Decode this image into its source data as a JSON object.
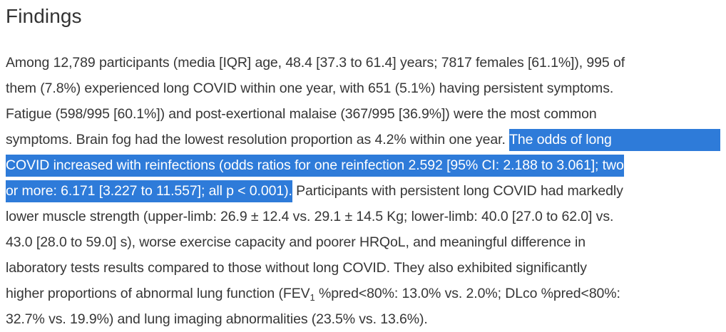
{
  "heading": "Findings",
  "colors": {
    "selection": "#2e7bd9",
    "selection_text": "#ffffff",
    "text": "#363636",
    "heading": "#333333",
    "background": "#ffffff"
  },
  "paragraph_lines": [
    {
      "segments": [
        {
          "t": "Among 12,789 participants (media [IQR] age, 48.4 [37.3 to 61.4] years; 7817 females [61.1%]), 995 of"
        }
      ]
    },
    {
      "segments": [
        {
          "t": "them (7.8%) experienced long COVID within one year, with 651 (5.1%) having persistent symptoms."
        }
      ]
    },
    {
      "segments": [
        {
          "t": "Fatigue (598/995 [60.1%]) and post-exertional malaise (367/995 [36.9%]) were the most common"
        }
      ]
    },
    {
      "segments": [
        {
          "t": "symptoms. Brain fog had the lowest resolution proportion as 4.2% within one year. "
        },
        {
          "t": "The odds of long",
          "hl": true,
          "extend": true
        }
      ]
    },
    {
      "segments": [
        {
          "t": "COVID increased with reinfections (odds ratios for one reinfection 2.592 [95% CI: 2.188 to 3.061]; two",
          "hl": true
        }
      ]
    },
    {
      "segments": [
        {
          "t": "or more: 6.171 [3.227 to 11.557]; all p < 0.001).",
          "hl": true
        },
        {
          "t": " Participants with persistent long COVID had markedly"
        }
      ]
    },
    {
      "segments": [
        {
          "t": "lower muscle strength (upper-limb: 26.9 ± 12.4 vs. 29.1 ± 14.5 Kg; lower-limb: 40.0 [27.0 to 62.0] vs."
        }
      ]
    },
    {
      "segments": [
        {
          "t": "43.0 [28.0 to 59.0] s), worse exercise capacity and poorer HRQoL, and meaningful difference in"
        }
      ]
    },
    {
      "segments": [
        {
          "t": "laboratory tests results compared to those without long COVID. They also exhibited significantly"
        }
      ]
    },
    {
      "segments": [
        {
          "t": "higher proportions of abnormal lung function (FEV"
        },
        {
          "t": "1",
          "sub": true
        },
        {
          "t": " %pred<80%: 13.0% vs. 2.0%; DLco %pred<80%:"
        }
      ]
    },
    {
      "segments": [
        {
          "t": "32.7% vs. 19.9%) and lung imaging abnormalities (23.5% vs. 13.6%)."
        }
      ]
    }
  ]
}
